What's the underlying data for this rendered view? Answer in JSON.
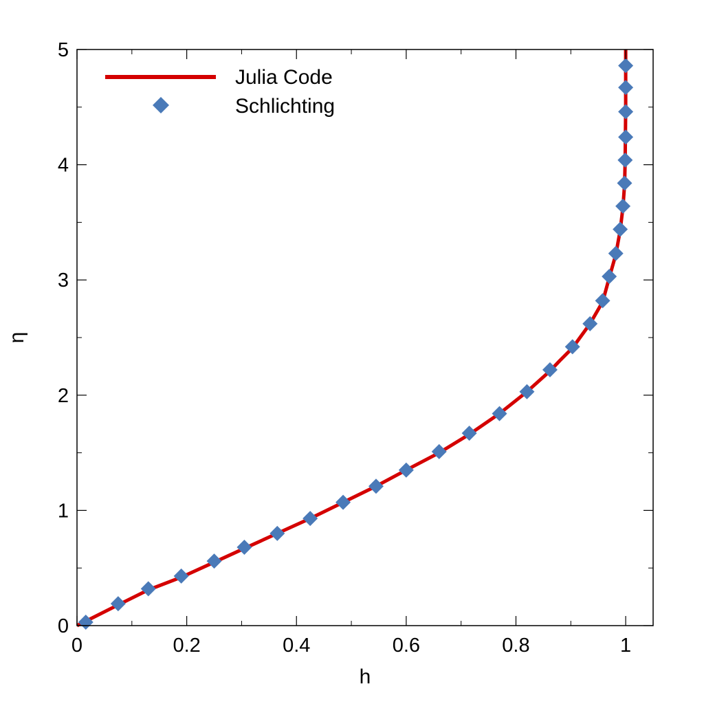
{
  "chart_data": {
    "type": "line",
    "xlabel": "h",
    "ylabel": "η",
    "xlim": [
      0,
      1.05
    ],
    "ylim": [
      0,
      5
    ],
    "x_ticks": [
      0,
      0.2,
      0.4,
      0.6,
      0.8,
      1
    ],
    "x_tick_labels": [
      "0",
      "0.2",
      "0.4",
      "0.6",
      "0.8",
      "1"
    ],
    "y_ticks": [
      0,
      1,
      2,
      3,
      4,
      5
    ],
    "y_tick_labels": [
      "0",
      "1",
      "2",
      "3",
      "4",
      "5"
    ],
    "grid": false,
    "legend_position": "top-left",
    "series": [
      {
        "name": "Julia Code",
        "style": "line",
        "color": "#d40000",
        "x": [
          0.0,
          0.075,
          0.13,
          0.19,
          0.25,
          0.305,
          0.365,
          0.425,
          0.485,
          0.545,
          0.6,
          0.66,
          0.715,
          0.77,
          0.82,
          0.862,
          0.88,
          0.903,
          0.935,
          0.958,
          0.97,
          0.982,
          0.99,
          0.995,
          0.998,
          0.999,
          1.0,
          1.0
        ],
        "y": [
          0.0,
          0.18,
          0.31,
          0.42,
          0.55,
          0.67,
          0.8,
          0.93,
          1.07,
          1.21,
          1.35,
          1.5,
          1.66,
          1.84,
          2.03,
          2.21,
          2.3,
          2.41,
          2.62,
          2.81,
          3.02,
          3.22,
          3.43,
          3.63,
          3.83,
          4.03,
          4.5,
          5.0
        ]
      },
      {
        "name": "Schlichting",
        "style": "marker",
        "marker": "diamond",
        "color": "#4a7ab8",
        "x": [
          0.016,
          0.075,
          0.13,
          0.19,
          0.25,
          0.305,
          0.365,
          0.425,
          0.485,
          0.545,
          0.6,
          0.66,
          0.715,
          0.77,
          0.82,
          0.862,
          0.903,
          0.935,
          0.958,
          0.97,
          0.982,
          0.99,
          0.995,
          0.998,
          0.999,
          1.0,
          1.0,
          1.0,
          1.0
        ],
        "y": [
          0.03,
          0.19,
          0.32,
          0.43,
          0.56,
          0.68,
          0.8,
          0.93,
          1.07,
          1.21,
          1.35,
          1.51,
          1.67,
          1.84,
          2.03,
          2.22,
          2.42,
          2.62,
          2.82,
          3.03,
          3.23,
          3.44,
          3.64,
          3.84,
          4.04,
          4.24,
          4.46,
          4.67,
          4.86
        ]
      }
    ]
  }
}
